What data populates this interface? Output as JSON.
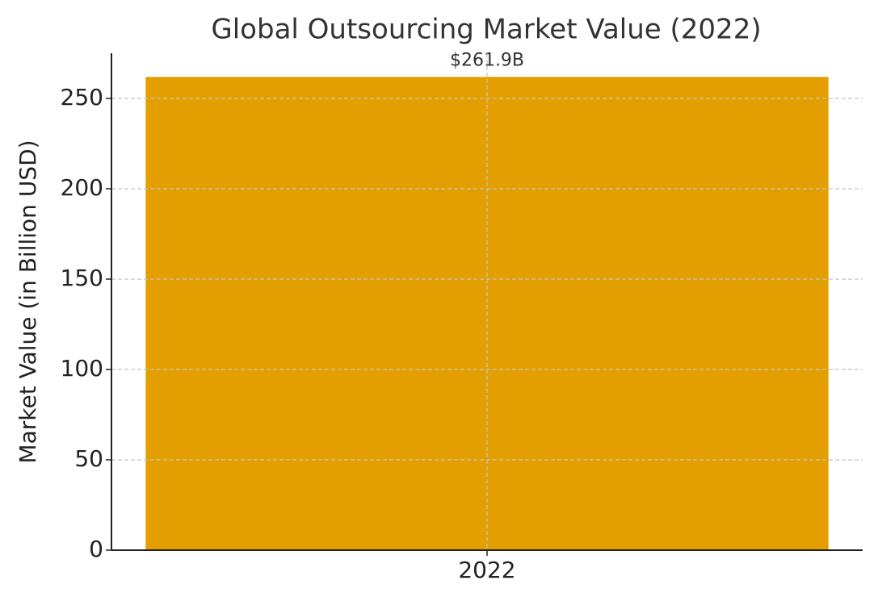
{
  "chart_data": {
    "type": "bar",
    "title": "Global Outsourcing Market Value (2022)",
    "y_label": "Market Value (in Billion USD)",
    "categories": [
      "2022"
    ],
    "values": [
      261.9
    ],
    "value_labels": [
      "$261.9B"
    ],
    "color": "#e39f00",
    "ylim": [
      0,
      275
    ],
    "yticks": [
      0,
      50,
      100,
      150,
      200,
      250
    ],
    "grid": true
  }
}
